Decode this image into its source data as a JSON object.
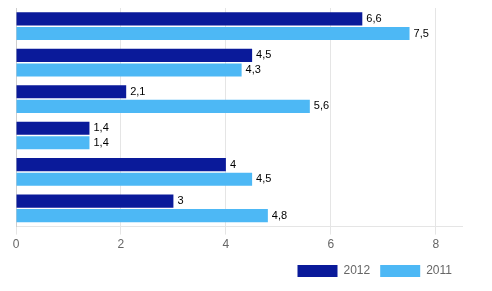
{
  "chart_data": {
    "type": "bar",
    "orientation": "horizontal",
    "categories": [
      null,
      null,
      null,
      null,
      null,
      null
    ],
    "series": [
      {
        "name": "2012",
        "color": "#0a1a9a",
        "values": [
          6.6,
          4.5,
          2.1,
          1.4,
          4.0,
          3.0
        ],
        "value_labels": [
          "6,6",
          "4,5",
          "2,1",
          "1,4",
          "4",
          "3"
        ]
      },
      {
        "name": "2011",
        "color": "#4db8f5",
        "values": [
          7.5,
          4.3,
          5.6,
          1.4,
          4.5,
          4.8
        ],
        "value_labels": [
          "7,5",
          "4,3",
          "5,6",
          "1,4",
          "4,5",
          "4,8"
        ]
      }
    ],
    "xlim": [
      0,
      8.5
    ],
    "xticks": [
      0,
      2,
      4,
      6,
      8
    ],
    "grid": true,
    "legend": "lower right",
    "data_labels": true,
    "tick_labels": "x"
  }
}
